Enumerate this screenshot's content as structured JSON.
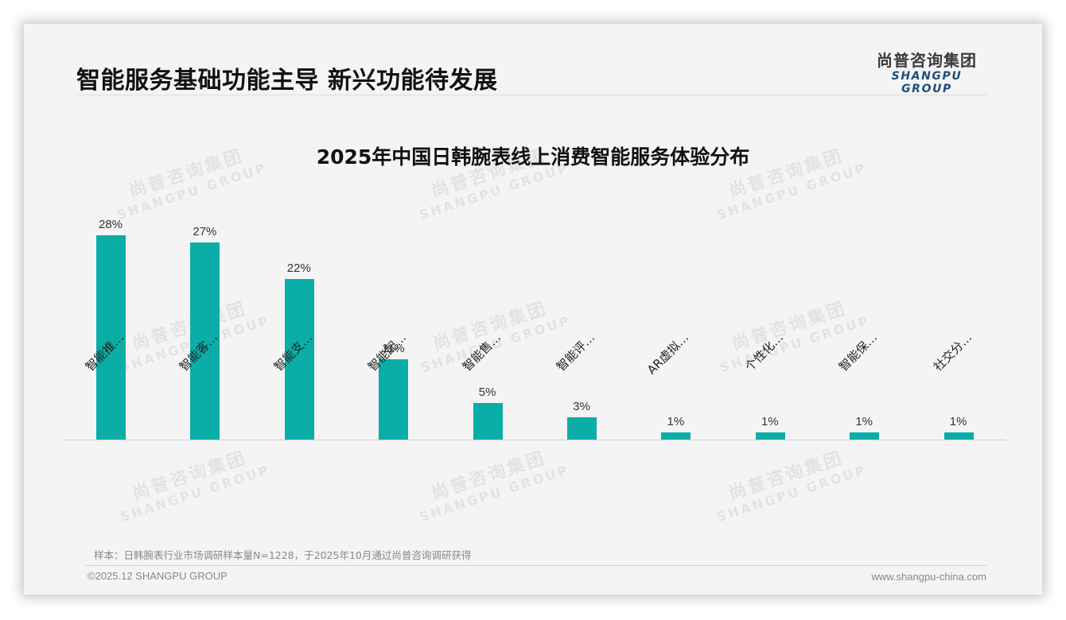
{
  "header": {
    "title": "智能服务基础功能主导 新兴功能待发展",
    "logo_cn": "尚普咨询集团",
    "logo_en": "SHANGPU GROUP"
  },
  "watermark": {
    "cn": "尚普咨询集团",
    "en": "SHANGPU GROUP"
  },
  "chart_data": {
    "type": "bar",
    "title": "2025年中国日韩腕表线上消费智能服务体验分布",
    "categories": [
      "智能推…",
      "智能客…",
      "智能支…",
      "智能配…",
      "智能售…",
      "智能评…",
      "AR虚拟…",
      "个性化…",
      "智能保…",
      "社交分…"
    ],
    "values": [
      28,
      27,
      22,
      11,
      5,
      3,
      1,
      1,
      1,
      1
    ],
    "value_labels": [
      "28%",
      "27%",
      "22%",
      "11%",
      "5%",
      "3%",
      "1%",
      "1%",
      "1%",
      "1%"
    ],
    "unit": "%",
    "xlabel": "",
    "ylabel": "",
    "ylim": [
      0,
      30
    ],
    "grid": false,
    "legend": "none",
    "bar_color": "#0aaea6"
  },
  "footer": {
    "note": "样本：日韩腕表行业市场调研样本量N=1228，于2025年10月通过尚普咨询调研获得",
    "copyright": "©2025.12 SHANGPU GROUP",
    "website": "www.shangpu-china.com"
  }
}
